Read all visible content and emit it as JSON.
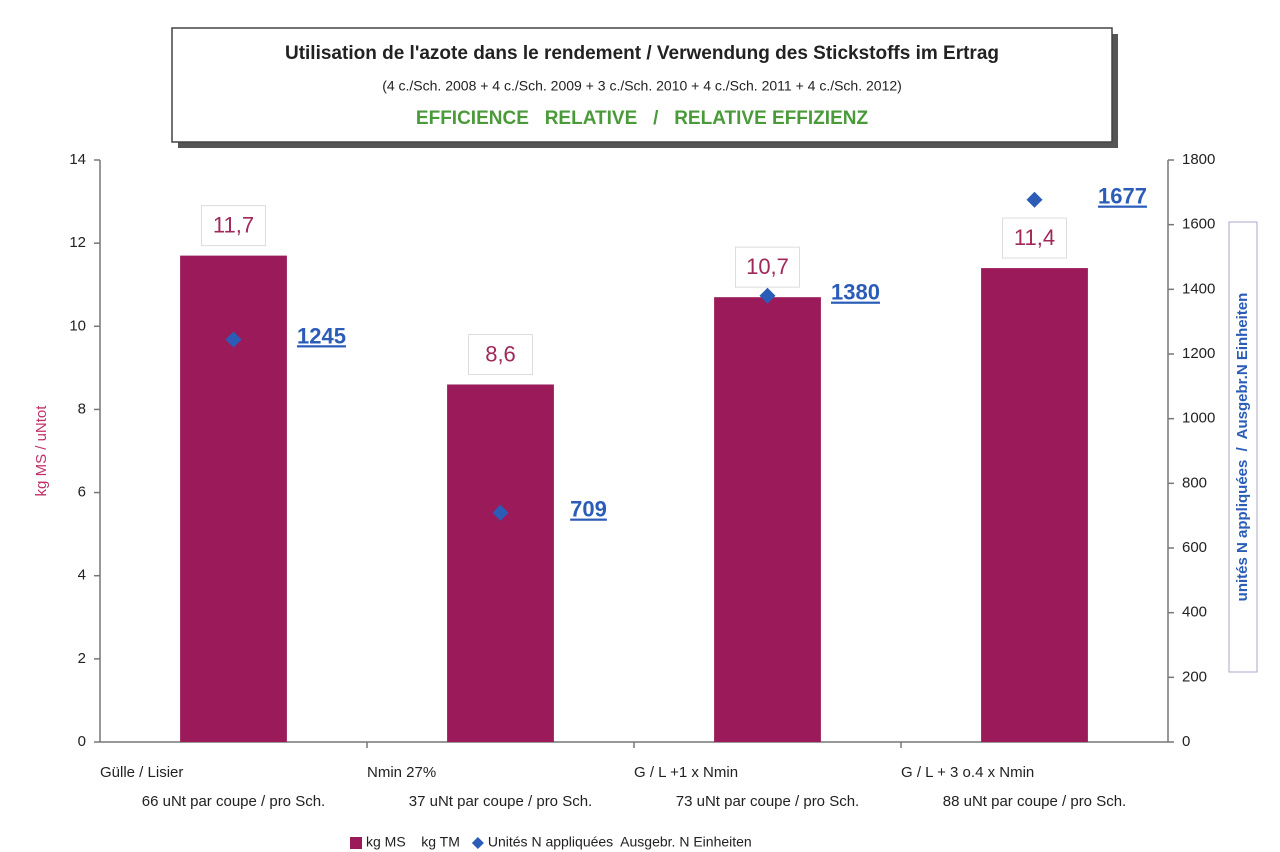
{
  "chart_data": {
    "type": "bar",
    "title": "Utilisation de l'azote dans le rendement / Verwendung des Stickstoffs im Ertrag",
    "subtitle": "(4 c./Sch. 2008 + 4 c./Sch. 2009 + 3 c./Sch. 2010 + 4 c./Sch. 2011 + 4 c./Sch. 2012)",
    "subtitle2": "EFFICIENCE   RELATIVE   /   RELATIVE EFFIZIENZ",
    "y_label": "kg MS / uNtot",
    "y2_label": "unités N appliquées  /  Ausgebr.N Einheiten",
    "categories": [
      "Gülle / Lisier",
      "Nmin 27%",
      "G / L +1 x Nmin",
      "G / L + 3 o.4 x Nmin"
    ],
    "category_notes": [
      "66 uNt par coupe / pro Sch.",
      "37 uNt par coupe / pro Sch.",
      "73 uNt par coupe / pro Sch.",
      "88 uNt par coupe / pro Sch."
    ],
    "series": [
      {
        "name": "kg MS    kg TM",
        "type": "bar",
        "color": "#9b1b5a",
        "values": [
          11.7,
          8.6,
          10.7,
          11.4
        ],
        "value_labels": [
          "11,7",
          "8,6",
          "10,7",
          "11,4"
        ]
      },
      {
        "name": "Unités N appliquées  Ausgebr. N Einheiten",
        "type": "scatter",
        "axis": "y2",
        "color": "#2a5cb8",
        "values": [
          1245,
          709,
          1380,
          1677
        ]
      }
    ],
    "ylim": [
      0,
      14
    ],
    "yticks": [
      0,
      2,
      4,
      6,
      8,
      10,
      12,
      14
    ],
    "y2lim": [
      0,
      1800
    ],
    "y2ticks": [
      0,
      200,
      400,
      600,
      800,
      1000,
      1200,
      1400,
      1600,
      1800
    ],
    "grid": false,
    "legend": "bottom"
  }
}
